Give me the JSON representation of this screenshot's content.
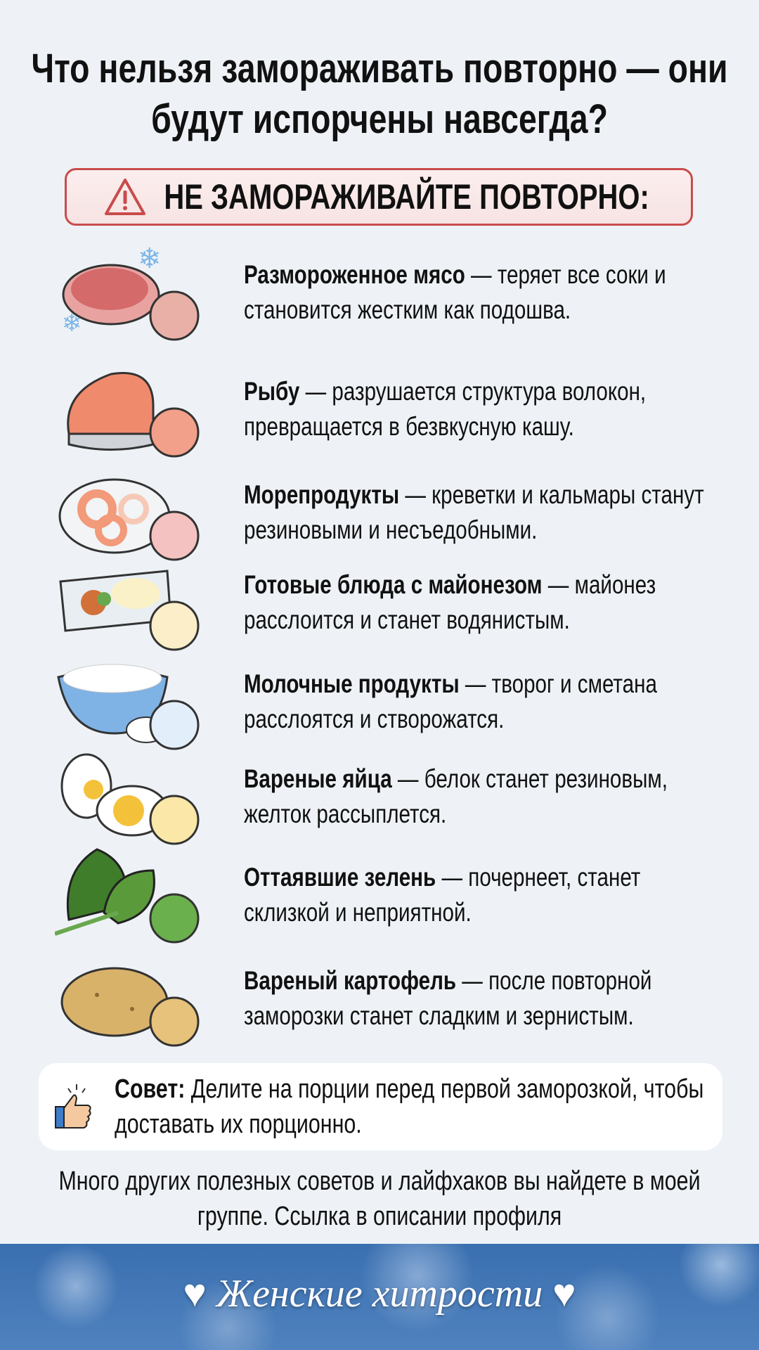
{
  "title": "Что нельзя замораживать повторно — они будут испорчены навсегда?",
  "warning": {
    "icon": "warning-triangle-icon",
    "label": "НЕ ЗАМОРАЖИВАЙТЕ ПОВТОРНО:",
    "color": "#c94b4b"
  },
  "items": [
    {
      "icon": "meat-icon",
      "name": "Размороженное мясо",
      "desc": " — теряет все соки и становится жестким как подошва."
    },
    {
      "icon": "fish-icon",
      "name": "Рыбу",
      "desc": " — разрушается структура волокон, превращается в безвкусную кашу."
    },
    {
      "icon": "seafood-icon",
      "name": "Морепродукты",
      "desc": " — креветки и кальмары станут резиновыми и несъедобными."
    },
    {
      "icon": "mayo-dish-icon",
      "name": "Готовые блюда с майонезом",
      "desc": " — майонез расслоится и станет водянистым."
    },
    {
      "icon": "dairy-icon",
      "name": "Молочные продукты",
      "desc": " — творог и сметана расслоятся и створожатся."
    },
    {
      "icon": "boiled-egg-icon",
      "name": "Вареные яйца",
      "desc": " — белок станет резиновым, желток рассыплется."
    },
    {
      "icon": "greens-icon",
      "name": "Оттаявшие зелень",
      "desc": " — почернеет, станет склизкой и неприятной."
    },
    {
      "icon": "potato-icon",
      "name": "Вареный картофель",
      "desc": " — после повторной заморозки станет сладким и зернистым."
    }
  ],
  "tip": {
    "icon": "thumbs-up-icon",
    "label": "Совет:",
    "text": " Делите на порции перед первой заморозкой, чтобы доставать их порционно."
  },
  "footer": "Много других полезных советов и лайфхаков вы найдете в моей группе. Ссылка в описании профиля",
  "brand": "♥ Женские хитрости ♥"
}
